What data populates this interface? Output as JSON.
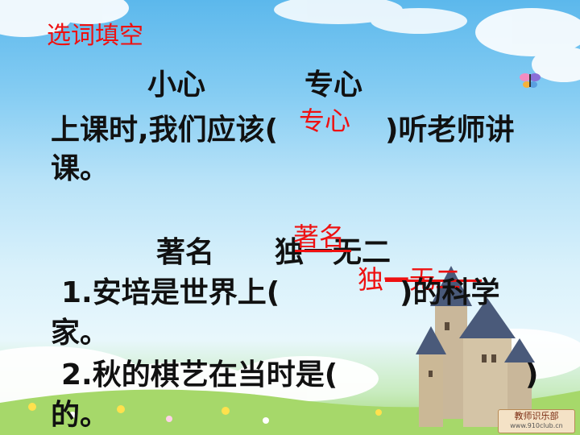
{
  "slide": {
    "title": "选词填空",
    "section1": {
      "word_a": "小心",
      "word_b": "专心",
      "sentence_part1": "上课时,我们应该(",
      "sentence_part2": ")听老师讲",
      "sentence_end": "课。",
      "answer": "专心"
    },
    "section2": {
      "word_a": "著名",
      "word_b": "独一无二",
      "answer_famous": "著名",
      "answer_unique": "独一无二",
      "q1_part1": "1.安培是世界上(",
      "q1_part2": ")的科学",
      "q1_end": "家。",
      "q2_part1": "2.秋的棋艺在当时是(",
      "q2_part2": ")",
      "q2_end": "的。"
    },
    "watermark": {
      "text": "教师识乐部",
      "url": "www.910club.cn"
    }
  },
  "colors": {
    "answer_red": "#ee1111",
    "body_text": "#111111",
    "sky_top": "#5cb8ec",
    "grass": "#9fd56e"
  }
}
